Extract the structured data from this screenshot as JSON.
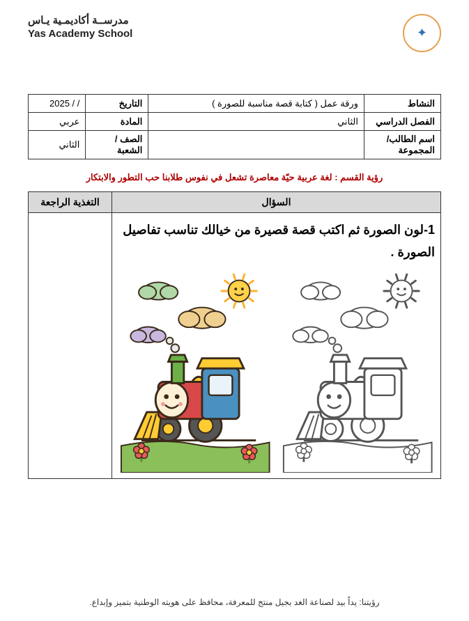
{
  "header": {
    "school_ar": "مدرســة أكاديمـية يـاس",
    "school_en": "Yas Academy School",
    "logo_border": "#e8a050",
    "logo_icon_color": "#3070b0"
  },
  "info": {
    "r1": {
      "activity_lbl": "النشاط",
      "activity_val": "ورقة عمل ( كتابة قصة مناسبة للصورة )",
      "date_lbl": "التاريخ",
      "date_val": "2025 /   /"
    },
    "r2": {
      "sem_lbl": "الفصل الدراسي",
      "sem_val": "الثاني",
      "subj_lbl": "المادة",
      "subj_val": "عربي"
    },
    "r3": {
      "name_lbl": "اسم الطالب/المجموعة",
      "name_val": "",
      "class_lbl": "الصف / الشعبة",
      "class_val": "الثاني"
    }
  },
  "vision": "رؤية القسم : لغة عربية حيّة معاصرة تشعل في نفوس طلابنا حب التطور والابتكار",
  "main": {
    "question_h": "السؤال",
    "feedback_h": "التغذية الراجعة",
    "q1": "1-لون الصورة ثم اكتب قصة قصيرة من خيالك تناسب تفاصيل الصورة ."
  },
  "train_colored": {
    "sky": "#ffffff",
    "sun": "#ffd24a",
    "sun_face": "#ffb030",
    "cloud1": "#b0d8a8",
    "cloud2": "#f0d090",
    "cloud3": "#c8b8e0",
    "body": "#d94848",
    "cab": "#4a90c0",
    "roof": "#ffcc33",
    "chimney": "#6bb048",
    "wheels": "#555555",
    "wheel_inner": "#ffcc33",
    "cowcatcher": "#ffcc33",
    "ground": "#8bbf5a",
    "flower_petal": "#e85a5a",
    "flower_center": "#ffcc33",
    "face_bg": "#fff0d8",
    "outline": "#3a2a1a"
  },
  "train_bw": {
    "outline": "#555555",
    "fill": "#ffffff"
  },
  "footer": "رؤيتنا: يداً بيد لصناعة الغد بجيل منتج للمعرفة، محافظ على هويته الوطنية بتميز وإبداع."
}
